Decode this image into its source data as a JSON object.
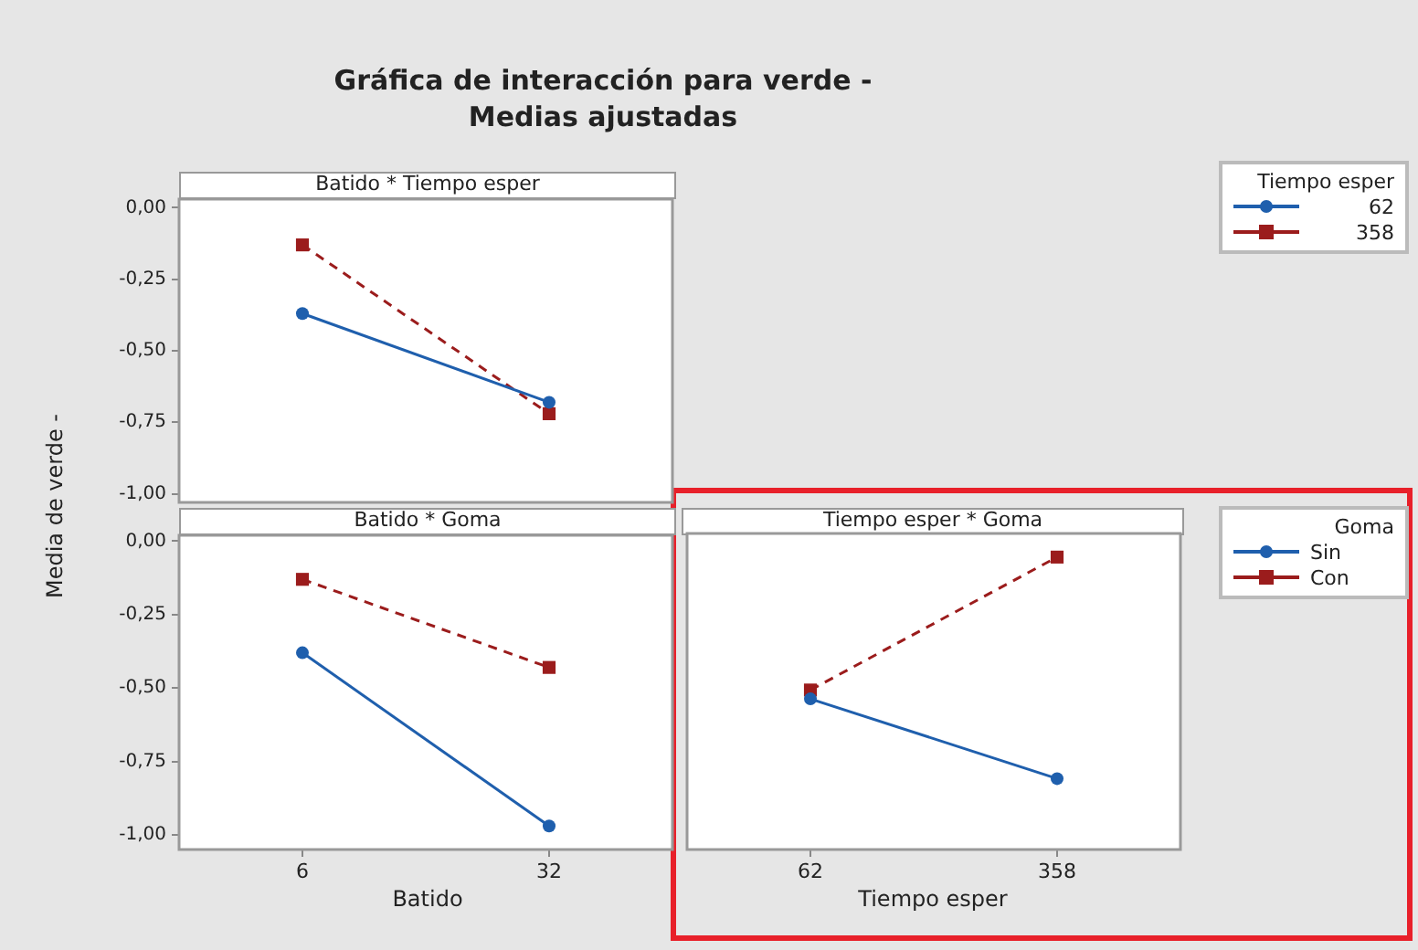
{
  "chart_data": [
    {
      "type": "line",
      "title": "Gráfica de interacción para verde -\nMedias ajustadas",
      "subtitle": "Batido * Tiempo esper",
      "ylabel": "Media de verde -",
      "legend_title": "Tiempo esper",
      "categories": [
        "6",
        "32"
      ],
      "series": [
        {
          "name": "62",
          "color": "#1f5fad",
          "values": [
            -0.37,
            -0.68
          ],
          "marker": "circle",
          "line_style": "solid"
        },
        {
          "name": "358",
          "color": "#9b1c1c",
          "values": [
            -0.13,
            -0.72
          ],
          "marker": "square",
          "line_style": "dashed"
        }
      ],
      "ylim": [
        -1.03,
        0.03
      ],
      "yticks": [
        {
          "value": 0,
          "label": "0,00"
        },
        {
          "value": -0.25,
          "label": "-0,25"
        },
        {
          "value": -0.5,
          "label": "-0,50"
        },
        {
          "value": -0.75,
          "label": "-0,75"
        },
        {
          "value": -1,
          "label": "-1,00"
        }
      ],
      "legend": "right",
      "tick_labels": "y"
    },
    {
      "type": "line",
      "subtitle": "Batido * Goma",
      "xlabel": "Batido",
      "categories": [
        "6",
        "32"
      ],
      "series": [
        {
          "color": "#1f5fad",
          "values": [
            -0.38,
            -0.97
          ],
          "marker": "circle",
          "line_style": "solid"
        },
        {
          "color": "#9b1c1c",
          "values": [
            -0.13,
            -0.43
          ],
          "marker": "square",
          "line_style": "dashed"
        }
      ],
      "ylim": [
        -1.05,
        0.02
      ],
      "yticks": [
        {
          "value": 0,
          "label": "0,00"
        },
        {
          "value": -0.25,
          "label": "-0,25"
        },
        {
          "value": -0.5,
          "label": "-0,50"
        },
        {
          "value": -0.75,
          "label": "-0,75"
        },
        {
          "value": -1,
          "label": "-1,00"
        }
      ]
    },
    {
      "type": "line",
      "subtitle": "Tiempo esper * Goma",
      "xlabel": "Tiempo esper",
      "legend_title": "Goma",
      "categories": [
        "62",
        "358"
      ],
      "series": [
        {
          "name": "Sin",
          "color": "#1f5fad",
          "values": [
            -0.54,
            -0.81
          ],
          "marker": "circle",
          "line_style": "solid"
        },
        {
          "name": "Con",
          "color": "#9b1c1c",
          "values": [
            -0.51,
            -0.06
          ],
          "marker": "square",
          "line_style": "dashed"
        }
      ],
      "ylim": [
        -1.05,
        0.02
      ],
      "legend": "right",
      "tick_labels": "x"
    }
  ]
}
